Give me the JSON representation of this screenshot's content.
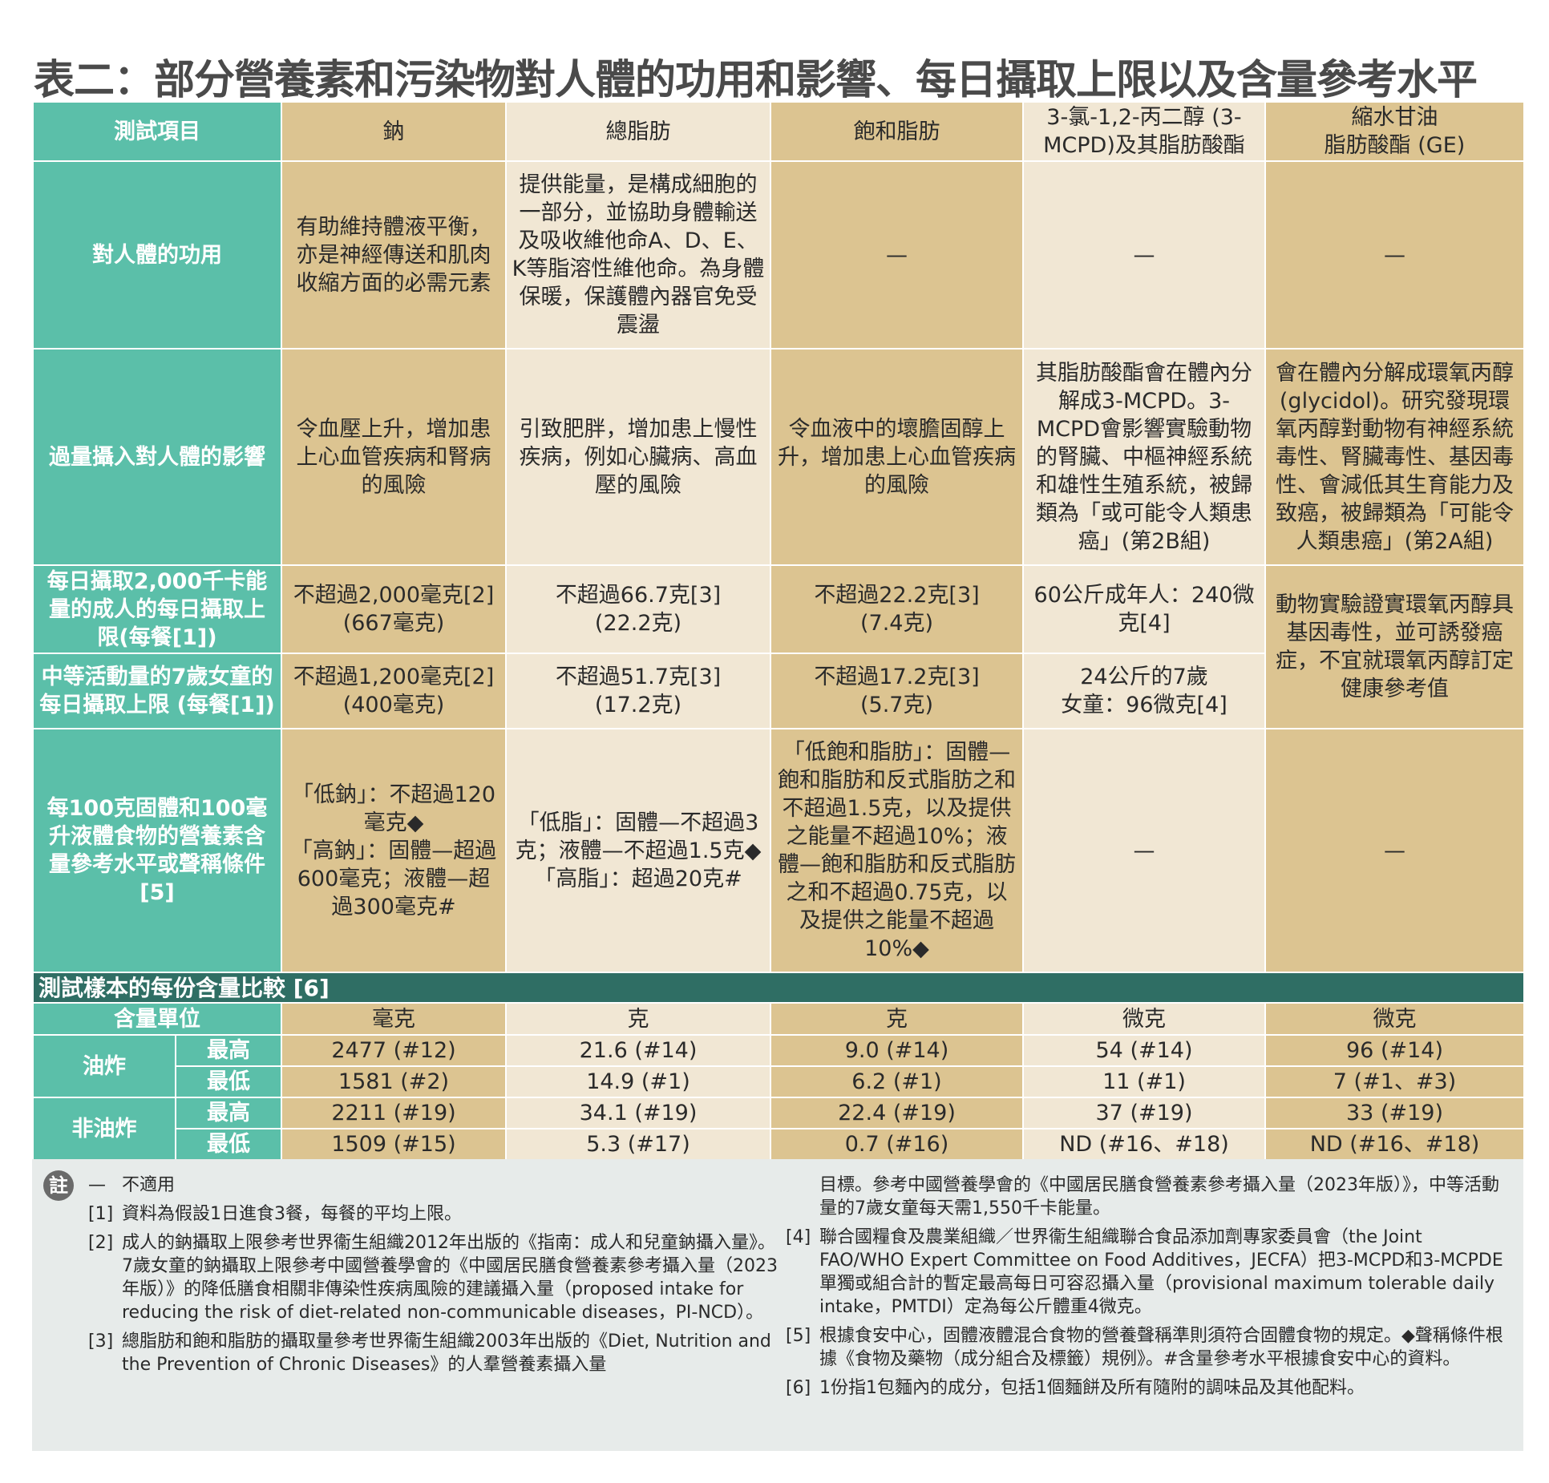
{
  "title": "表二：部分營養素和污染物對人體的功用和影響、每日攝取上限以及含量參考水平",
  "colors": {
    "teal": "#5bbfa9",
    "dark_teal": "#2f6e64",
    "gold": "#dcc491",
    "cream": "#f1e7d4",
    "note_bg": "#e7ebea"
  },
  "table": {
    "header_label": "測試項目",
    "columns": [
      "鈉",
      "總脂肪",
      "飽和脂肪",
      "3-氯-1,2-丙二醇 (3-MCPD)及其脂肪酸酯",
      "縮水甘油\n脂肪酸酯 (GE)"
    ],
    "rows": {
      "function": {
        "label": "對人體的功用",
        "cells": [
          "有助維持體液平衡，亦是神經傳送和肌肉收縮方面的必需元素",
          "提供能量，是構成細胞的一部分，並協助身體輸送及吸收維他命A、D、E、K等脂溶性維他命。為身體保暖，保護體內器官免受震盪",
          "—",
          "—",
          "—"
        ]
      },
      "effect": {
        "label": "過量攝入對人體的影響",
        "cells": [
          "令血壓上升，增加患上心血管疾病和腎病的風險",
          "引致肥胖，增加患上慢性疾病，例如心臟病、高血壓的風險",
          "令血液中的壞膽固醇上升，增加患上心血管疾病的風險",
          "其脂肪酸酯會在體內分解成3-MCPD。3-MCPD會影響實驗動物的腎臟、中樞神經系統和雄性生殖系統，被歸類為「或可能令人類患癌」(第2B組)",
          "會在體內分解成環氧丙醇(glycidol)。研究發現環氧丙醇對動物有神經系統毒性、腎臟毒性、基因毒性、會減低其生育能力及致癌，被歸類為「可能令人類患癌」(第2A組)"
        ]
      },
      "adult": {
        "label": "每日攝取2,000千卡能量的成人的每日攝取上限(每餐[1])",
        "cells": [
          "不超過2,000毫克[2]\n(667毫克)",
          "不超過66.7克[3]\n(22.2克)",
          "不超過22.2克[3]\n(7.4克)",
          "60公斤成年人：240微克[4]"
        ]
      },
      "ge_limit": "動物實驗證實環氧丙醇具基因毒性，並可誘發癌症，不宜就環氧丙醇訂定健康參考值",
      "child": {
        "label": "中等活動量的7歲女童的每日攝取上限 (每餐[1])",
        "cells": [
          "不超過1,200毫克[2]\n(400毫克)",
          "不超過51.7克[3]\n(17.2克)",
          "不超過17.2克[3]\n(5.7克)",
          "24公斤的7歲\n女童：96微克[4]"
        ]
      },
      "reference": {
        "label": "每100克固體和100毫升液體食物的營養素含量參考水平或聲稱條件[5]",
        "cells": [
          "「低鈉」：不超過120毫克◆\n「高鈉」：固體—超過600毫克；液體—超過300毫克#",
          "「低脂」：固體—不超過3克；液體—不超過1.5克◆\n「高脂」：超過20克#",
          "「低飽和脂肪」：固體—飽和脂肪和反式脂肪之和不超過1.5克，以及提供之能量不超過10%；液體—飽和脂肪和反式脂肪之和不超過0.75克，以及提供之能量不超過10%◆",
          "—",
          "—"
        ]
      }
    },
    "section_title": "測試樣本的每份含量比較 [6]",
    "unit_label": "含量單位",
    "units": [
      "毫克",
      "克",
      "克",
      "微克",
      "微克"
    ],
    "fried_label": "油炸",
    "nonfried_label": "非油炸",
    "max_label": "最高",
    "min_label": "最低",
    "fried_max": [
      "2477 (#12)",
      "21.6 (#14)",
      "9.0 (#14)",
      "54 (#14)",
      "96 (#14)"
    ],
    "fried_min": [
      "1581 (#2)",
      "14.9 (#1)",
      "6.2 (#1)",
      "11 (#1)",
      "7 (#1、#3)"
    ],
    "nonfried_max": [
      "2211 (#19)",
      "34.1 (#19)",
      "22.4 (#19)",
      "37 (#19)",
      "33 (#19)"
    ],
    "nonfried_min": [
      "1509 (#15)",
      "5.3 (#17)",
      "0.7 (#16)",
      "ND (#16、#18)",
      "ND (#16、#18)"
    ]
  },
  "notes": {
    "badge": "註",
    "left": [
      {
        "mark": "—",
        "text": "不適用"
      },
      {
        "mark": "[1]",
        "text": "資料為假設1日進食3餐，每餐的平均上限。"
      },
      {
        "mark": "[2]",
        "text": "成人的鈉攝取上限參考世界衞生組織2012年出版的《指南：成人和兒童鈉攝入量》。7歲女童的鈉攝取上限參考中國營養學會的《中國居民膳食營養素參考攝入量（2023年版）》的降低膳食相關非傳染性疾病風險的建議攝入量（proposed intake for reducing the risk of diet-related non-communicable diseases，PI-NCD）。"
      },
      {
        "mark": "[3]",
        "text": "總脂肪和飽和脂肪的攝取量參考世界衞生組織2003年出版的《Diet, Nutrition and the Prevention of Chronic Diseases》的人羣營養素攝入量"
      }
    ],
    "right_cont": "目標。參考中國營養學會的《中國居民膳食營養素參考攝入量（2023年版）》，中等活動量的7歲女童每天需1,550千卡能量。",
    "right": [
      {
        "mark": "[4]",
        "text": "聯合國糧食及農業組織／世界衞生組織聯合食品添加劑專家委員會（the Joint FAO/WHO Expert Committee on Food Additives，JECFA）把3-MCPD和3-MCPDE單獨或組合計的暫定最高每日可容忍攝入量（provisional maximum tolerable daily intake，PMTDI）定為每公斤體重4微克。"
      },
      {
        "mark": "[5]",
        "text": "根據食安中心，固體液體混合食物的營養聲稱準則須符合固體食物的規定。◆聲稱條件根據《食物及藥物（成分組合及標籤）規例》。#含量參考水平根據食安中心的資料。"
      },
      {
        "mark": "[6]",
        "text": "1份指1包麵內的成分，包括1個麵餅及所有隨附的調味品及其他配料。"
      }
    ]
  }
}
